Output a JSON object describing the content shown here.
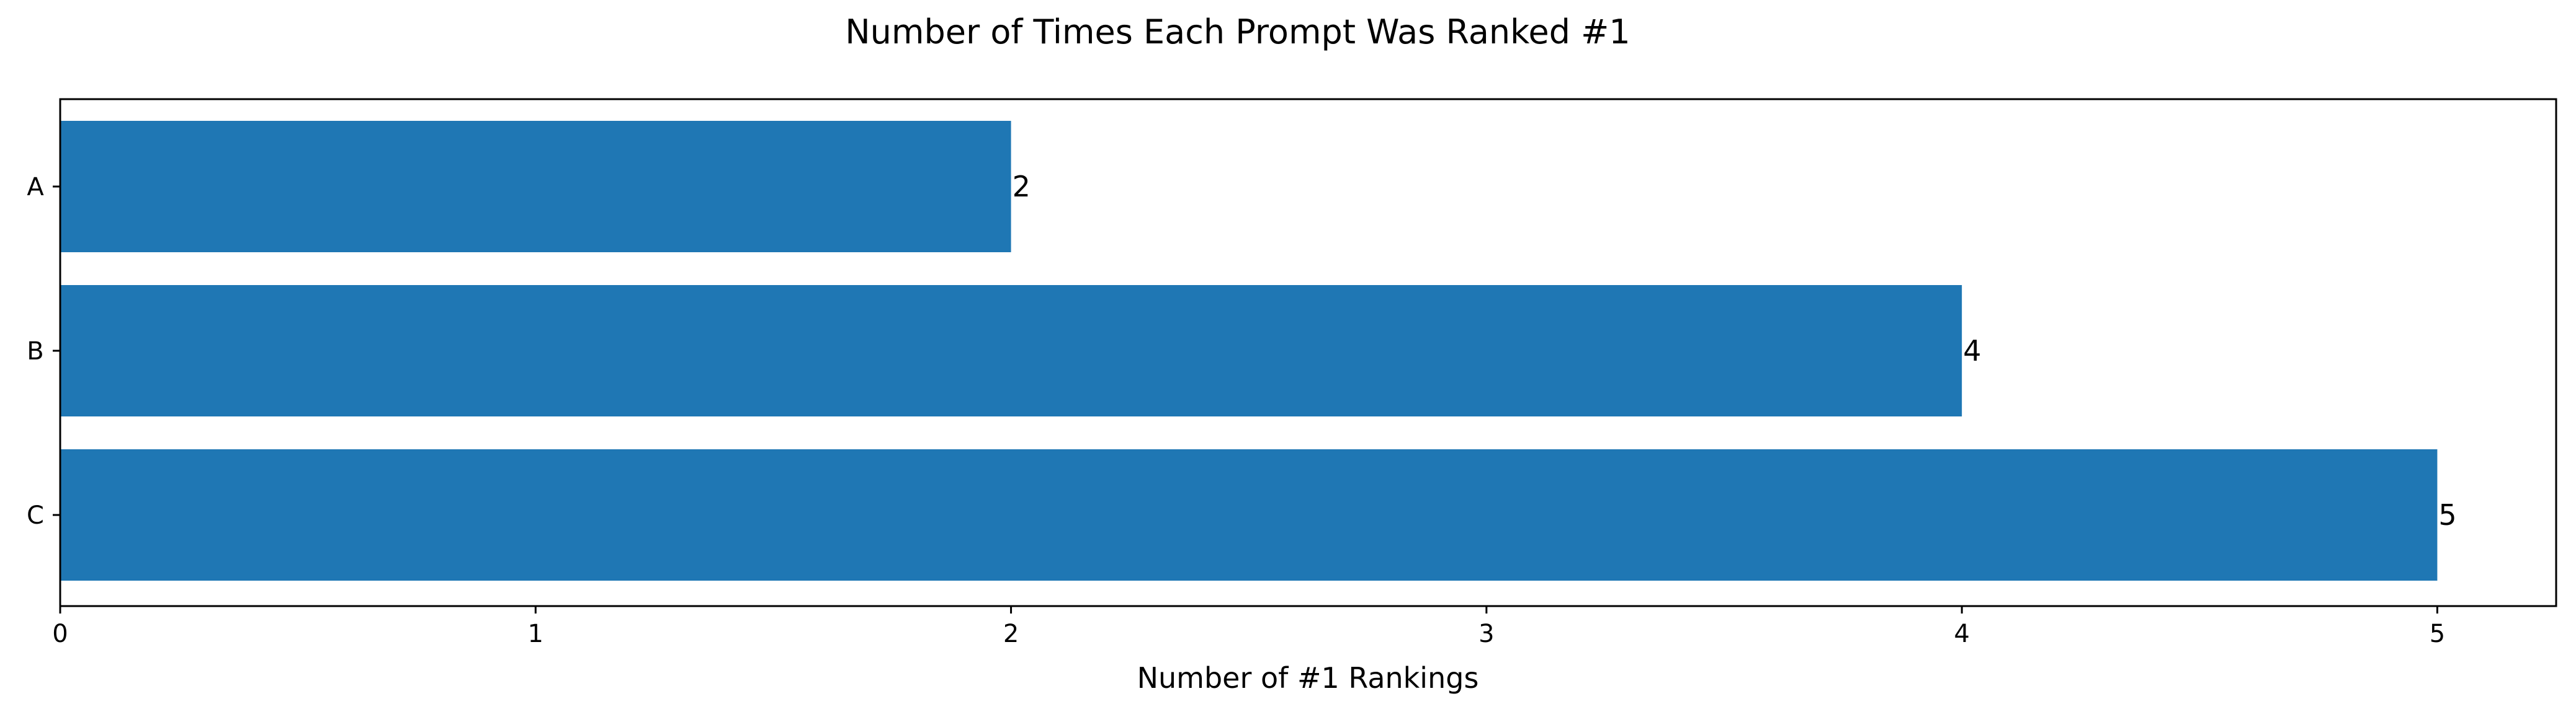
{
  "chart_data": {
    "type": "bar",
    "orientation": "horizontal",
    "title": "Number of Times Each Prompt Was Ranked #1",
    "xlabel": "Number of #1 Rankings",
    "ylabel": "",
    "categories": [
      "A",
      "B",
      "C"
    ],
    "values": [
      2,
      4,
      5
    ],
    "data_labels": [
      "2",
      "4",
      "5"
    ],
    "xlim": [
      0,
      5.25
    ],
    "xticks": [
      0,
      1,
      2,
      3,
      4,
      5
    ],
    "xtick_labels": [
      "0",
      "1",
      "2",
      "3",
      "4",
      "5"
    ],
    "grid": false,
    "legend": "none",
    "colors": {
      "bar": "#1f77b4",
      "axes": "#000000",
      "background": "#ffffff"
    }
  }
}
